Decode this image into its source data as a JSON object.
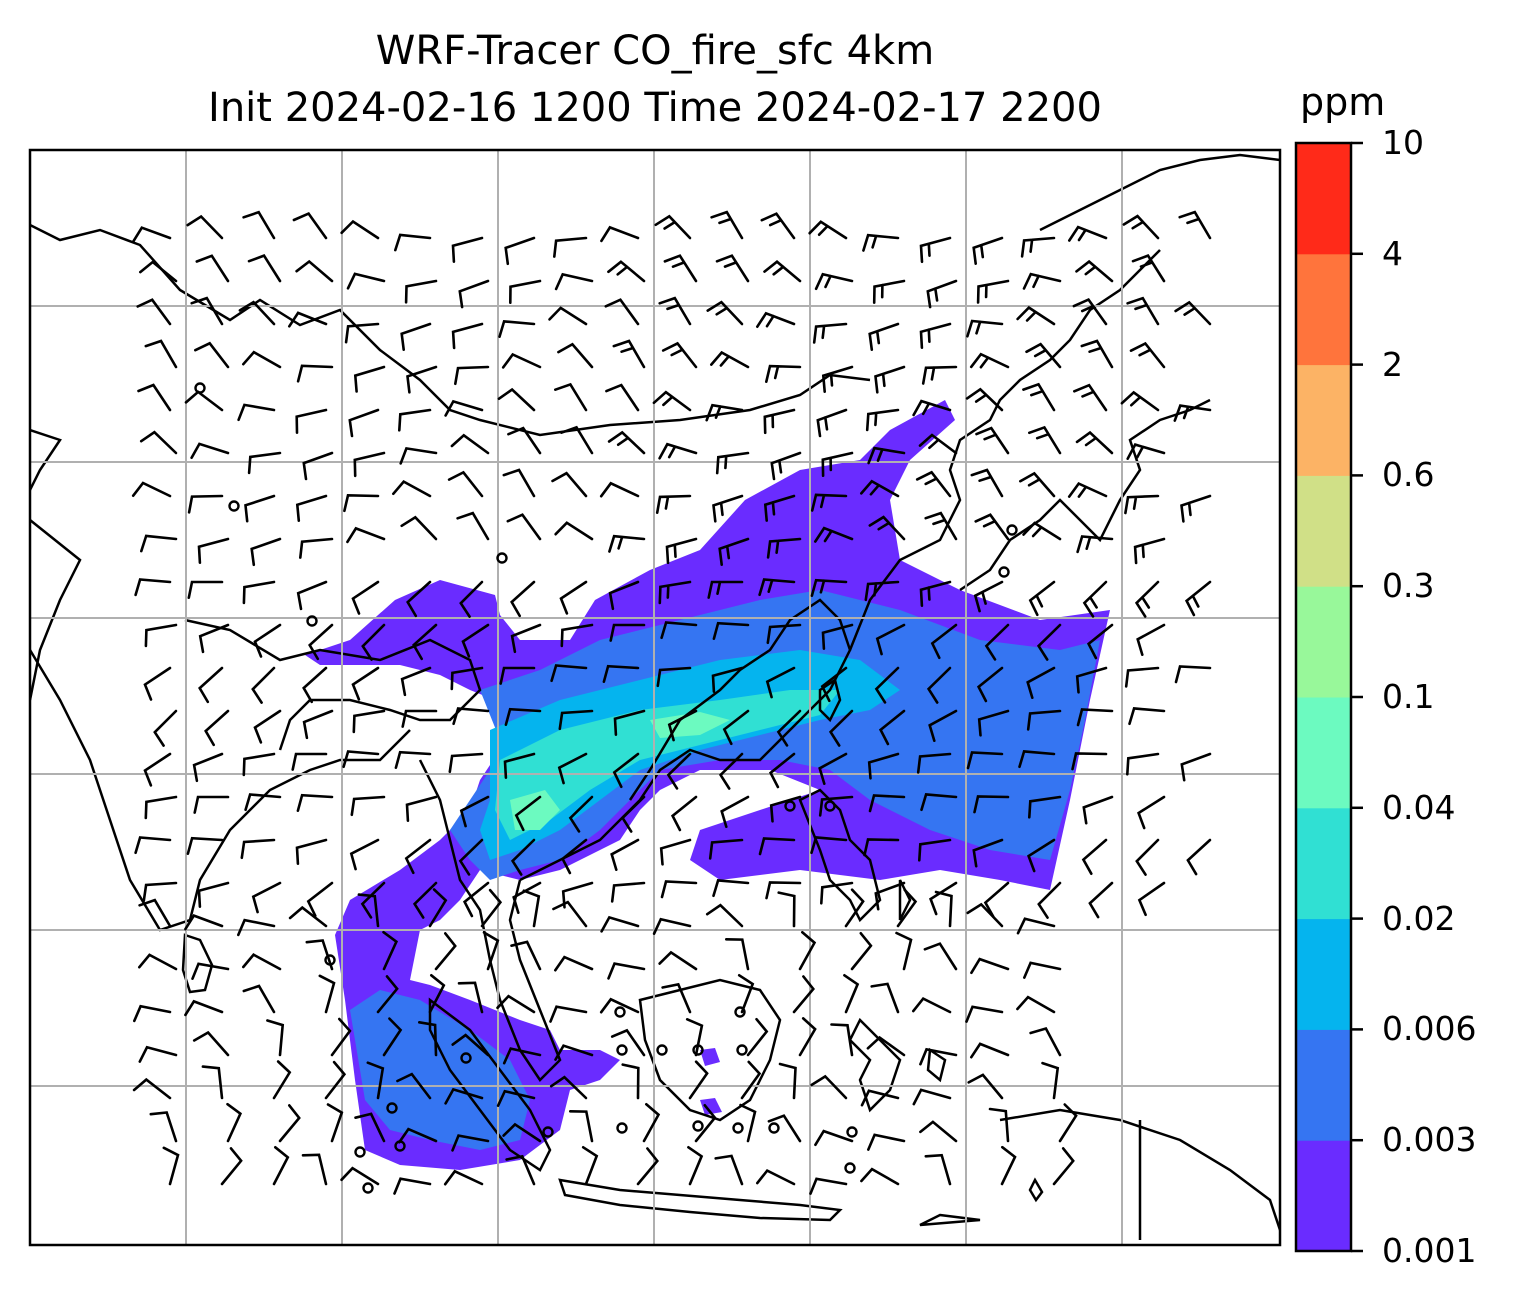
{
  "title": {
    "line1": "WRF-Tracer CO_fire_sfc 4km",
    "line2": "Init 2024-02-16 1200 Time 2024-02-17 2200"
  },
  "colorbar": {
    "unit": "ppm",
    "levels": [
      "0.001",
      "0.003",
      "0.006",
      "0.02",
      "0.04",
      "0.1",
      "0.3",
      "0.6",
      "2",
      "4",
      "10"
    ],
    "colors": [
      "#6a2cff",
      "#3575f2",
      "#05b4ee",
      "#30e0d3",
      "#6cfac0",
      "#98f89a",
      "#d0e087",
      "#fcb365",
      "#ff743c",
      "#ff2a19"
    ]
  },
  "map": {
    "field": "CO_fire_sfc",
    "plume_colors": {
      "low": "#6a2cff",
      "mid": "#3575f2",
      "higher": "#05b4ee",
      "high": "#30e0d3",
      "peak": "#6cfac0"
    },
    "wind_barbs": "black",
    "coastlines": "black",
    "gridlines": "#b0b0b0"
  }
}
